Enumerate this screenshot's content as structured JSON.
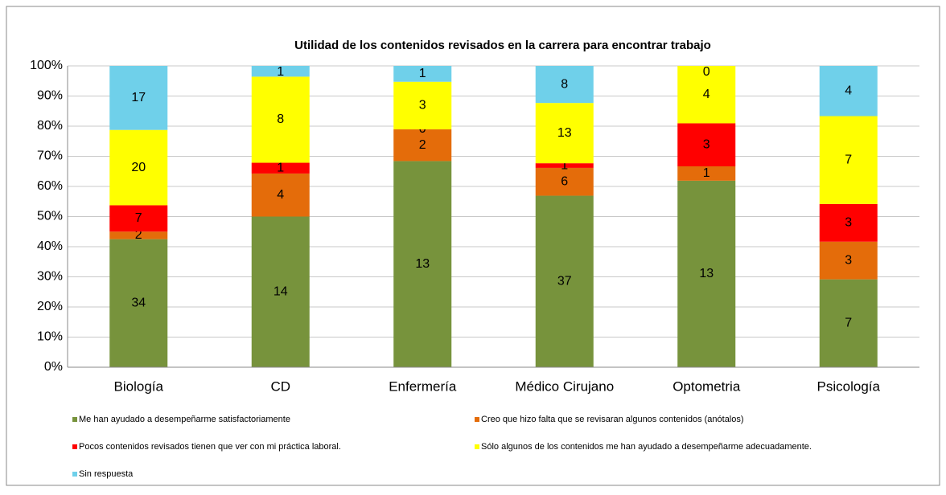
{
  "chart_data": {
    "type": "bar",
    "stacked": "percent",
    "title": "Utilidad de los contenidos revisados en la carrera  para encontrar trabajo",
    "categories": [
      "Biología",
      "CD",
      "Enfermería",
      "Médico Cirujano",
      "Optometria",
      "Psicología"
    ],
    "series": [
      {
        "name": "Me han ayudado a desempeñarme satisfactoriamente",
        "color": "#77933c",
        "values": [
          34,
          14,
          13,
          37,
          13,
          7
        ]
      },
      {
        "name": "Creo que hizo falta que se revisaran algunos contenidos (anótalos)",
        "color": "#e46c0a",
        "values": [
          2,
          4,
          2,
          6,
          1,
          3
        ]
      },
      {
        "name": "Pocos contenidos revisados tienen que ver con mi práctica laboral.",
        "color": "#ff0000",
        "values": [
          7,
          1,
          0,
          1,
          3,
          3
        ]
      },
      {
        "name": "Sólo algunos de los contenidos me han ayudado a desempeñarme adecuadamente.",
        "color": "#ffff00",
        "values": [
          20,
          8,
          3,
          13,
          4,
          7
        ]
      },
      {
        "name": "Sin respuesta",
        "color": "#6fd0ea",
        "values": [
          17,
          1,
          1,
          8,
          0,
          4
        ]
      }
    ],
    "ylim": [
      0,
      100
    ],
    "yticks": [
      {
        "value": 0,
        "label": "0%"
      },
      {
        "value": 10,
        "label": "10%"
      },
      {
        "value": 20,
        "label": "20%"
      },
      {
        "value": 30,
        "label": "30%"
      },
      {
        "value": 40,
        "label": "40%"
      },
      {
        "value": 50,
        "label": "50%"
      },
      {
        "value": 60,
        "label": "60%"
      },
      {
        "value": 70,
        "label": "70%"
      },
      {
        "value": 80,
        "label": "80%"
      },
      {
        "value": 90,
        "label": "90%"
      },
      {
        "value": 100,
        "label": "100%"
      }
    ],
    "grid": true,
    "legend": "bottom"
  }
}
